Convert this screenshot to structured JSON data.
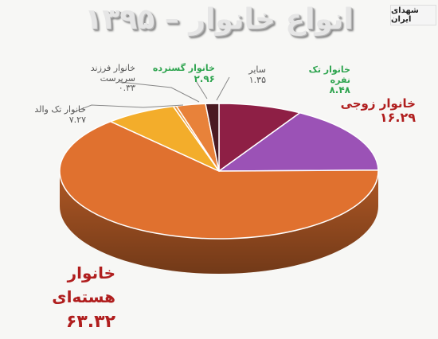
{
  "header": {
    "title": "انواع خانوار – ۱۳۹۵",
    "watermark": "شهدای ایران"
  },
  "chart_data": {
    "type": "pie",
    "title": "انواع خانوار – ۱۳۹۵",
    "slices": [
      {
        "label": "خانوار تک نفره",
        "value_text": "۸.۴۸",
        "value": 8.48,
        "color": "#8e1f45"
      },
      {
        "label": "خانوار زوجی",
        "value_text": "۱۶.۲۹",
        "value": 16.29,
        "color": "#9b52b6"
      },
      {
        "label": "خانوار هسته‌ای",
        "value_text": "۶۳.۳۲",
        "value": 63.32,
        "color": "#e0712f"
      },
      {
        "label": "خانوار تک والد",
        "value_text": "۷.۲۷",
        "value": 7.27,
        "color": "#f3ad2b"
      },
      {
        "label": "خانوار فرزند سرپرست",
        "value_text": "۰.۳۳",
        "value": 0.33,
        "color": "#ea9a3e"
      },
      {
        "label": "خانوار گسترده",
        "value_text": "۲.۹۶",
        "value": 2.96,
        "color": "#e8823a"
      },
      {
        "label": "سایر",
        "value_text": "۱.۳۵",
        "value": 1.35,
        "color": "#4a1a22"
      }
    ]
  }
}
